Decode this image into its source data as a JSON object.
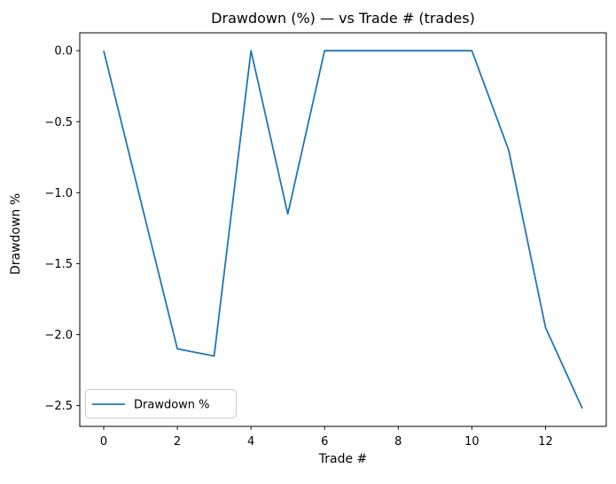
{
  "figure": {
    "background": "#ffffff"
  },
  "chart_data": {
    "type": "line",
    "title": "Drawdown (%) — vs Trade # (trades)",
    "xlabel": "Trade #",
    "ylabel": "Drawdown %",
    "legend": {
      "label": "Drawdown %",
      "position": "lower left"
    },
    "x": [
      0,
      1,
      2,
      3,
      4,
      5,
      6,
      7,
      8,
      9,
      10,
      11,
      12,
      13
    ],
    "series": [
      {
        "name": "Drawdown %",
        "values": [
          0.0,
          -1.05,
          -2.1,
          -2.15,
          0.0,
          -1.15,
          0.0,
          0.0,
          0.0,
          0.0,
          0.0,
          -0.7,
          -1.95,
          -2.52
        ]
      }
    ],
    "xlim": [
      -0.65,
      13.65
    ],
    "ylim": [
      -2.646,
      0.126
    ],
    "xticks": [
      0,
      2,
      4,
      6,
      8,
      10,
      12
    ],
    "xtick_labels": [
      "0",
      "2",
      "4",
      "6",
      "8",
      "10",
      "12"
    ],
    "yticks": [
      0.0,
      -0.5,
      -1.0,
      -1.5,
      -2.0,
      -2.5
    ],
    "ytick_labels": [
      "0.0",
      "−0.5",
      "−1.0",
      "−1.5",
      "−2.0",
      "−2.5"
    ],
    "grid": false,
    "line_color": "#1f77b4",
    "line_width": 1.8,
    "axes_color": "#000000"
  }
}
